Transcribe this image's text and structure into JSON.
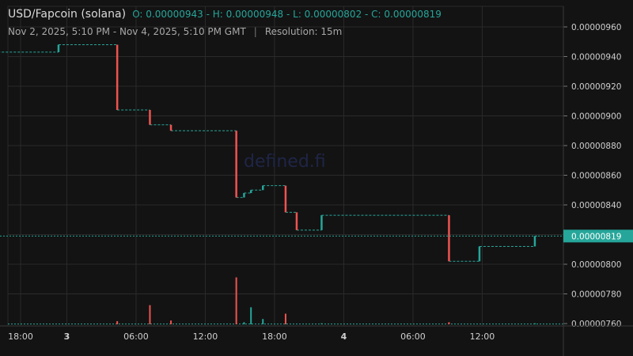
{
  "header": {
    "symbol": "USD/Fapcoin (solana)",
    "ohlc": "O: 0.00000943 - H: 0.00000948 - L: 0.00000802 - C: 0.00000819",
    "range": "Nov 2, 2025, 5:10 PM - Nov 4, 2025, 5:10 PM GMT",
    "separator": "|",
    "resolution": "Resolution: 15m"
  },
  "watermark": "defined.fi",
  "colors": {
    "up": "#26a69a",
    "down": "#ef5350",
    "grid": "#2a2a2a",
    "background": "#131313"
  },
  "chart_data": {
    "type": "candlestick",
    "xlabel": "",
    "ylabel": "",
    "y_ticks": [
      "0.00000760",
      "0.00000780",
      "0.00000800",
      "0.00000820",
      "0.00000840",
      "0.00000860",
      "0.00000880",
      "0.00000900",
      "0.00000920",
      "0.00000940",
      "0.00000960"
    ],
    "x_ticks": [
      {
        "label": "18:00",
        "t": 0.833,
        "day": false
      },
      {
        "label": "3",
        "t": 1.0,
        "day": true
      },
      {
        "label": "06:00",
        "t": 1.25,
        "day": false
      },
      {
        "label": "12:00",
        "t": 1.5,
        "day": false
      },
      {
        "label": "18:00",
        "t": 1.75,
        "day": false
      },
      {
        "label": "4",
        "t": 2.0,
        "day": true
      },
      {
        "label": "06:00",
        "t": 2.25,
        "day": false
      },
      {
        "label": "12:00",
        "t": 2.5,
        "day": false
      }
    ],
    "last_price": "0.00000819",
    "segments": [
      {
        "t0": 0.708,
        "t1": 0.97,
        "y": 9.43e-06
      },
      {
        "t0": 0.97,
        "t1": 1.182,
        "y": 9.48e-06
      },
      {
        "t0": 1.182,
        "t1": 1.3,
        "y": 9.04e-06
      },
      {
        "t0": 1.3,
        "t1": 1.376,
        "y": 8.94e-06
      },
      {
        "t0": 1.376,
        "t1": 1.612,
        "y": 8.9e-06
      },
      {
        "t0": 1.612,
        "t1": 1.64,
        "y": 8.45e-06
      },
      {
        "t0": 1.64,
        "t1": 1.665,
        "y": 8.48e-06
      },
      {
        "t0": 1.665,
        "t1": 1.708,
        "y": 8.5e-06
      },
      {
        "t0": 1.708,
        "t1": 1.79,
        "y": 8.53e-06
      },
      {
        "t0": 1.79,
        "t1": 1.83,
        "y": 8.35e-06
      },
      {
        "t0": 1.83,
        "t1": 1.92,
        "y": 8.23e-06
      },
      {
        "t0": 1.92,
        "t1": 2.38,
        "y": 8.33e-06
      },
      {
        "t0": 2.38,
        "t1": 2.49,
        "y": 8.02e-06
      },
      {
        "t0": 2.49,
        "t1": 2.69,
        "y": 8.12e-06
      },
      {
        "t0": 2.69,
        "t1": 2.708,
        "y": 8.19e-06
      }
    ],
    "candles": [
      {
        "t": 0.97,
        "open": 9.43e-06,
        "close": 9.48e-06
      },
      {
        "t": 1.182,
        "open": 9.48e-06,
        "close": 9.04e-06
      },
      {
        "t": 1.3,
        "open": 9.04e-06,
        "close": 8.94e-06
      },
      {
        "t": 1.376,
        "open": 8.94e-06,
        "close": 8.9e-06
      },
      {
        "t": 1.612,
        "open": 8.9e-06,
        "close": 8.45e-06
      },
      {
        "t": 1.64,
        "open": 8.45e-06,
        "close": 8.48e-06
      },
      {
        "t": 1.665,
        "open": 8.48e-06,
        "close": 8.5e-06
      },
      {
        "t": 1.708,
        "open": 8.5e-06,
        "close": 8.53e-06
      },
      {
        "t": 1.79,
        "open": 8.53e-06,
        "close": 8.35e-06
      },
      {
        "t": 1.83,
        "open": 8.35e-06,
        "close": 8.23e-06
      },
      {
        "t": 1.92,
        "open": 8.23e-06,
        "close": 8.33e-06
      },
      {
        "t": 2.38,
        "open": 8.33e-06,
        "close": 8.02e-06
      },
      {
        "t": 2.49,
        "open": 8.02e-06,
        "close": 8.12e-06
      },
      {
        "t": 2.69,
        "open": 8.12e-06,
        "close": 8.19e-06
      }
    ],
    "volume": [
      {
        "t": 1.182,
        "v": 0.15,
        "up": false
      },
      {
        "t": 1.3,
        "v": 0.9,
        "up": false
      },
      {
        "t": 1.376,
        "v": 0.18,
        "up": false
      },
      {
        "t": 1.612,
        "v": 2.2,
        "up": false
      },
      {
        "t": 1.64,
        "v": 0.1,
        "up": true
      },
      {
        "t": 1.665,
        "v": 0.8,
        "up": true
      },
      {
        "t": 1.708,
        "v": 0.25,
        "up": true
      },
      {
        "t": 1.79,
        "v": 0.5,
        "up": false
      },
      {
        "t": 1.92,
        "v": 0.05,
        "up": true
      },
      {
        "t": 2.38,
        "v": 0.1,
        "up": false
      },
      {
        "t": 2.69,
        "v": 0.05,
        "up": true
      }
    ]
  }
}
